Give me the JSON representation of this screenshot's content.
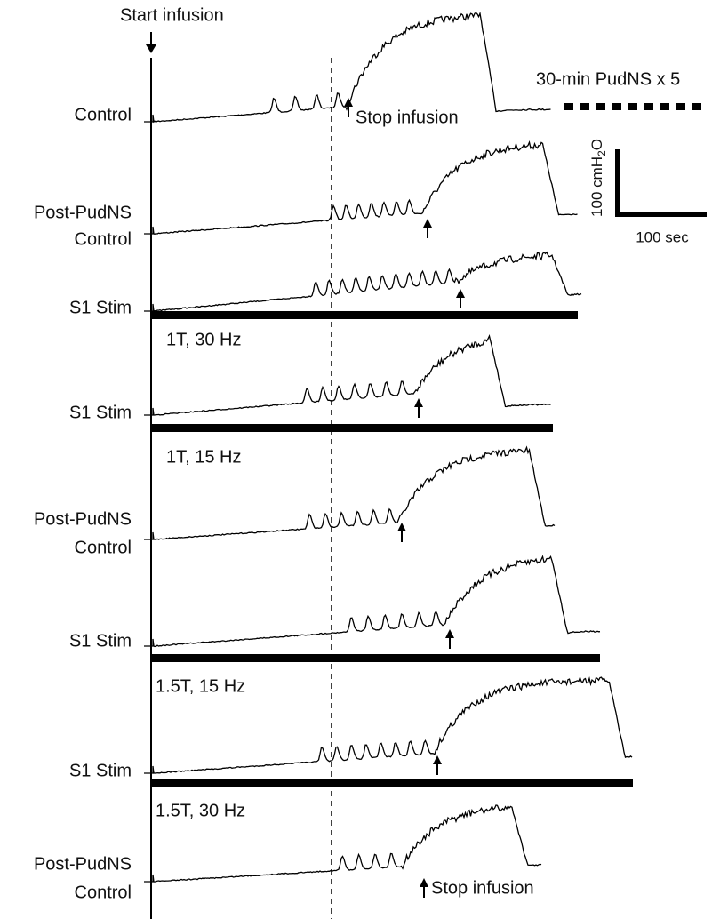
{
  "start_label": "Start infusion",
  "protocol_label": "30-min PudNS x 5",
  "scale": {
    "pressure": "100 cmH",
    "pressure_sub": "2",
    "pressure_end": "O",
    "time": "100 sec"
  },
  "traces": [
    {
      "label": [
        "Control"
      ],
      "annotation": "Stop infusion"
    },
    {
      "label": [
        "Post-PudNS",
        "Control"
      ]
    },
    {
      "label": [
        "S1 Stim"
      ],
      "stimulus": "1T, 30 Hz"
    },
    {
      "label": [
        "S1 Stim"
      ],
      "stimulus": "1T, 15 Hz"
    },
    {
      "label": [
        "Post-PudNS",
        "Control"
      ]
    },
    {
      "label": [
        "S1 Stim"
      ],
      "stimulus": "1.5T, 15 Hz"
    },
    {
      "label": [
        "S1 Stim"
      ],
      "stimulus": "1.5T, 30 Hz"
    },
    {
      "label": [
        "Post-PudNS",
        "Control"
      ],
      "annotation": "Stop infusion"
    }
  ]
}
